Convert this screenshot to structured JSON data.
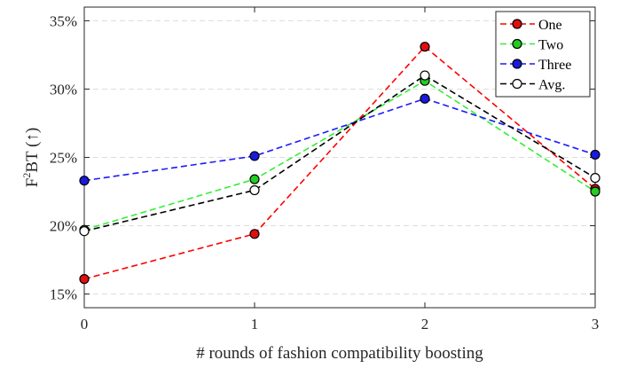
{
  "chart_data": {
    "type": "line",
    "title": "",
    "xlabel": "# rounds of fashion compatibility boosting",
    "ylabel_main": "F",
    "ylabel_sup": "2",
    "ylabel_rest": "BT (↑)",
    "x": [
      0,
      1,
      2,
      3
    ],
    "xticks": [
      "0",
      "1",
      "2",
      "3"
    ],
    "xlim": [
      0,
      3
    ],
    "ylim": [
      14,
      36
    ],
    "yticks": [
      15,
      20,
      25,
      30,
      35
    ],
    "ytick_labels": [
      "15%",
      "20%",
      "25%",
      "30%",
      "35%"
    ],
    "grid": "horizontal dashed",
    "legend_position": "top-right",
    "series": [
      {
        "name": "One",
        "values": [
          16.1,
          19.4,
          33.1,
          22.7
        ],
        "color": "#ff0000",
        "marker_fill": "#e01010"
      },
      {
        "name": "Two",
        "values": [
          19.7,
          23.4,
          30.6,
          22.5
        ],
        "color": "#33ee33",
        "marker_fill": "#22cc22"
      },
      {
        "name": "Three",
        "values": [
          23.3,
          25.1,
          29.3,
          25.2
        ],
        "color": "#1a1aff",
        "marker_fill": "#1a1add"
      },
      {
        "name": "Avg.",
        "values": [
          19.6,
          22.6,
          31.0,
          23.5
        ],
        "color": "#000000",
        "marker_fill": "#ffffff"
      }
    ]
  }
}
